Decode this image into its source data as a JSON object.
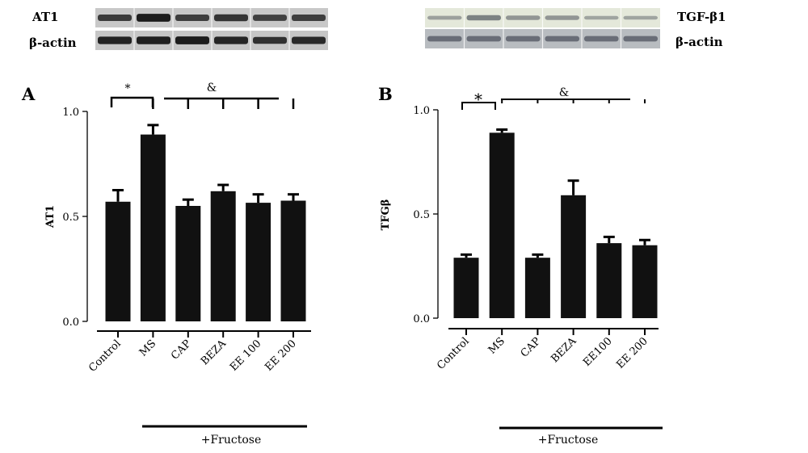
{
  "blots": [
    {
      "name": "blot-left",
      "rows": [
        {
          "label": "AT1",
          "intensity": [
            0.72,
            0.95,
            0.7,
            0.78,
            0.68,
            0.7
          ]
        },
        {
          "label": "β-actin",
          "intensity": [
            0.9,
            0.92,
            0.95,
            0.88,
            0.8,
            0.85
          ]
        }
      ],
      "row_bg": [
        "#c8c8c8",
        "#c6c6c6"
      ],
      "band_color": "#151515"
    },
    {
      "name": "blot-right",
      "rows": [
        {
          "label": "TGF-β1",
          "intensity": [
            0.25,
            0.5,
            0.35,
            0.35,
            0.22,
            0.22
          ]
        },
        {
          "label": "β-actin",
          "intensity": [
            0.55,
            0.55,
            0.55,
            0.55,
            0.55,
            0.55
          ]
        }
      ],
      "row_bg": [
        "#e4e8da",
        "#b8bcc0"
      ],
      "band_color": "#404550"
    }
  ],
  "chart_data": [
    {
      "type": "bar",
      "panel": "A",
      "title": "",
      "ylabel": "AT1",
      "xlabel": "",
      "categories": [
        "Control",
        "MS",
        "CAP",
        "BEZA",
        "EE 100",
        "EE 200"
      ],
      "values": [
        0.57,
        0.89,
        0.55,
        0.62,
        0.565,
        0.575
      ],
      "errors": [
        0.055,
        0.045,
        0.03,
        0.03,
        0.04,
        0.03
      ],
      "ylim": [
        0,
        1
      ],
      "yticks": [
        "0.0",
        "0.5",
        "1.0"
      ],
      "significance": {
        "star": "*",
        "amp": "&"
      },
      "group_label": "+Fructose",
      "bar_color": "#111111"
    },
    {
      "type": "bar",
      "panel": "B",
      "title": "",
      "ylabel": "TFGβ",
      "xlabel": "",
      "categories": [
        "Control",
        "MS",
        "CAP",
        "BEZA",
        "EE100",
        "EE 200"
      ],
      "values": [
        0.29,
        0.89,
        0.29,
        0.59,
        0.36,
        0.35
      ],
      "errors": [
        0.015,
        0.015,
        0.015,
        0.07,
        0.03,
        0.025
      ],
      "ylim": [
        0,
        1
      ],
      "yticks": [
        "0.0",
        "0.5",
        "1.0"
      ],
      "significance": {
        "star": "*",
        "amp": "&"
      },
      "group_label": "+Fructose",
      "bar_color": "#111111"
    }
  ]
}
